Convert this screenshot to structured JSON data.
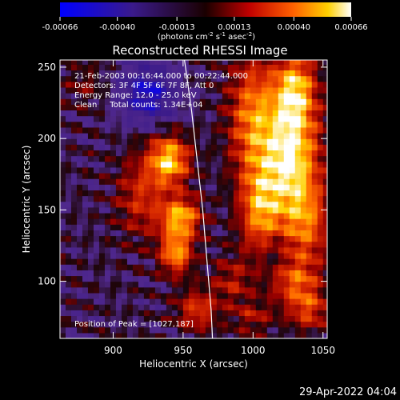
{
  "chart_data": {
    "type": "heatmap",
    "title": "Reconstructed RHESSI Image",
    "xlabel": "Heliocentric X (arcsec)",
    "ylabel": "Heliocentric Y (arcsec)",
    "xlim": [
      862,
      1053
    ],
    "ylim": [
      60,
      255
    ],
    "x_ticks": [
      900,
      950,
      1000,
      1050
    ],
    "y_ticks": [
      100,
      150,
      200,
      250
    ],
    "colorbar": {
      "range": [
        -0.00066,
        0.00066
      ],
      "ticks": [
        "-0.00066",
        "-0.00040",
        "-0.00013",
        "0.00013",
        "0.00040",
        "0.00066"
      ],
      "tick_values": [
        -0.00066,
        -0.0004,
        -0.00013,
        0.00013,
        0.0004,
        0.00066
      ],
      "label_main": "(photons cm",
      "label_sup1": "-2",
      "label_mid1": " s",
      "label_sup2": "-1",
      "label_mid2": " asec",
      "label_sup3": "-2",
      "label_end": ")"
    },
    "annotations": {
      "time_range": "21-Feb-2003 00:16:44.000 to 00:22:44.000",
      "detectors": "Detectors: 3F 4F 5F 6F 7F 8F, Att 0",
      "energy": "Energy Range: 12.0 - 25.0 keV",
      "clean": "Clean     Total counts: 1.34E+04",
      "peak": "Position of Peak = [1027,187]"
    },
    "peak": [
      1027,
      187
    ],
    "limb": [
      [
        951,
        255
      ],
      [
        956,
        220
      ],
      [
        960,
        185
      ],
      [
        964,
        150
      ],
      [
        967,
        115
      ],
      [
        970,
        80
      ],
      [
        971,
        60
      ]
    ],
    "sources": [
      {
        "x": 1027,
        "y": 187,
        "sx": 14,
        "sy": 30,
        "v": 0.00066
      },
      {
        "x": 1000,
        "y": 215,
        "sx": 12,
        "sy": 30,
        "v": 0.00045
      },
      {
        "x": 1030,
        "y": 235,
        "sx": 10,
        "sy": 18,
        "v": 0.0005
      },
      {
        "x": 1005,
        "y": 150,
        "sx": 10,
        "sy": 22,
        "v": 0.00045
      },
      {
        "x": 1038,
        "y": 140,
        "sx": 12,
        "sy": 20,
        "v": 0.00035
      },
      {
        "x": 940,
        "y": 185,
        "sx": 10,
        "sy": 12,
        "v": 0.0006
      },
      {
        "x": 948,
        "y": 145,
        "sx": 10,
        "sy": 10,
        "v": 0.00055
      },
      {
        "x": 945,
        "y": 120,
        "sx": 8,
        "sy": 10,
        "v": 0.0005
      },
      {
        "x": 920,
        "y": 160,
        "sx": 12,
        "sy": 20,
        "v": 0.00028
      },
      {
        "x": 1030,
        "y": 100,
        "sx": 12,
        "sy": 12,
        "v": 0.00035
      },
      {
        "x": 1040,
        "y": 80,
        "sx": 10,
        "sy": 10,
        "v": 0.0003
      },
      {
        "x": 985,
        "y": 100,
        "sx": 10,
        "sy": 12,
        "v": 0.00022
      },
      {
        "x": 960,
        "y": 80,
        "sx": 10,
        "sy": 10,
        "v": 0.00032
      },
      {
        "x": 1000,
        "y": 75,
        "sx": 10,
        "sy": 8,
        "v": 0.0002
      },
      {
        "x": 880,
        "y": 238,
        "sx": 10,
        "sy": 10,
        "v": 0.00012
      },
      {
        "x": 925,
        "y": 232,
        "sx": 14,
        "sy": 14,
        "v": -0.00045
      },
      {
        "x": 1015,
        "y": 120,
        "sx": 8,
        "sy": 10,
        "v": -0.00012
      }
    ]
  },
  "footer": {
    "date": "29-Apr-2022 04:04"
  }
}
